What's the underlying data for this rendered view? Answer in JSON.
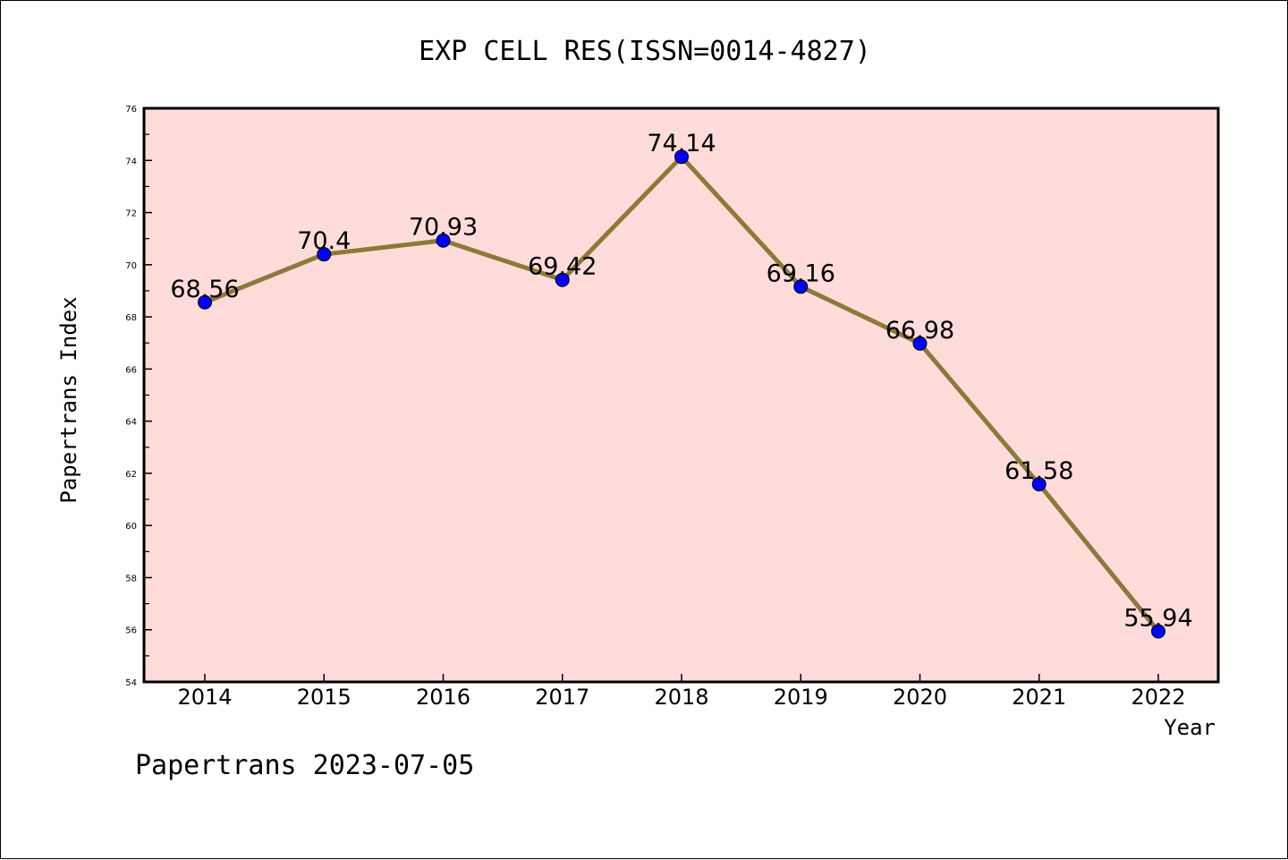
{
  "chart_data": {
    "type": "line",
    "title": "EXP CELL RES(ISSN=0014-4827)",
    "xlabel": "Year",
    "ylabel": "Papertrans Index",
    "categories": [
      "2014",
      "2015",
      "2016",
      "2017",
      "2018",
      "2019",
      "2020",
      "2021",
      "2022"
    ],
    "series": [
      {
        "values": [
          68.56,
          70.4,
          70.93,
          69.42,
          74.14,
          69.16,
          66.98,
          61.58,
          55.94
        ],
        "data_labels": [
          "68.56",
          "70.4",
          "70.93",
          "69.42",
          "74.14",
          "69.16",
          "66.98",
          "61.58",
          "55.94"
        ],
        "line_color": "#8b7a3a",
        "marker_color": "#0000ff"
      }
    ],
    "ylim": [
      54,
      76
    ],
    "yticks": [
      "54",
      "56",
      "58",
      "60",
      "62",
      "64",
      "66",
      "68",
      "70",
      "72",
      "74",
      "76"
    ],
    "plot_background": "#ffdcd9",
    "grid": false,
    "legend": "none"
  },
  "footer": "Papertrans 2023-07-05"
}
